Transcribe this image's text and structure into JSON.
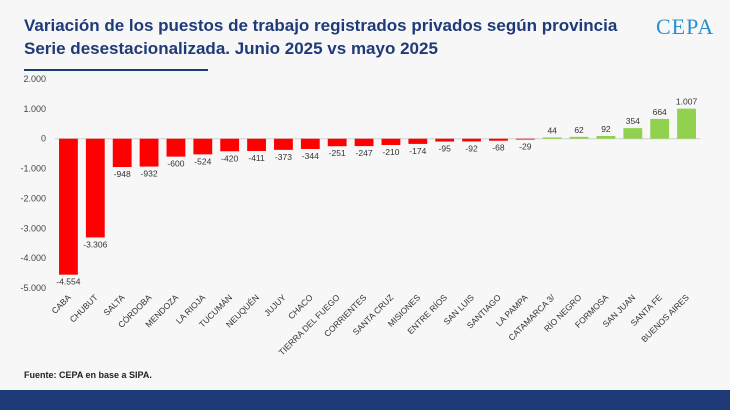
{
  "header": {
    "title_line1": "Variación de los puestos de trabajo registrados privados según provincia",
    "title_line2": "Serie desestacionalizada. Junio 2025 vs mayo 2025",
    "logo_text": "CEPA"
  },
  "footer": {
    "source": "Fuente: CEPA en base a SIPA."
  },
  "colors": {
    "negative": "#ff0000",
    "positive": "#92d050",
    "title": "#1f3a78",
    "footer_bar": "#1f3a78",
    "logo": "#2a8fd0"
  },
  "chart_data": {
    "type": "bar",
    "categories": [
      "CABA",
      "CHUBUT",
      "SALTA",
      "CÓRDOBA",
      "MENDOZA",
      "LA RIOJA",
      "TUCUMÁN",
      "NEUQUÉN",
      "JUJUY",
      "CHACO",
      "TIERRA DEL FUEGO",
      "CORRIENTES",
      "SANTA CRUZ",
      "MISIONES",
      "ENTRE RÍOS",
      "SAN LUIS",
      "SANTIAGO",
      "LA PAMPA",
      "CATAMARCA 3/",
      "RÍO NEGRO",
      "FORMOSA",
      "SAN JUAN",
      "SANTA FE",
      "BUENOS AIRES"
    ],
    "values": [
      -4554,
      -3306,
      -948,
      -932,
      -600,
      -524,
      -420,
      -411,
      -373,
      -344,
      -251,
      -247,
      -210,
      -174,
      -95,
      -92,
      -68,
      -29,
      44,
      62,
      92,
      354,
      664,
      1007
    ],
    "value_labels": [
      "-4.554",
      "-3.306",
      "-948",
      "-932",
      "-600",
      "-524",
      "-420",
      "-411",
      "-373",
      "-344",
      "-251",
      "-247",
      "-210",
      "-174",
      "-95",
      "-92",
      "-68",
      "-29",
      "44",
      "62",
      "92",
      "354",
      "664",
      "1.007"
    ],
    "y_ticks": [
      2000,
      1000,
      0,
      -1000,
      -2000,
      -3000,
      -4000,
      -5000
    ],
    "y_tick_labels": [
      "2.000",
      "1.000",
      "0",
      "-1.000",
      "-2.000",
      "-3.000",
      "-4.000",
      "-5.000"
    ],
    "ylim": [
      -5000,
      2000
    ],
    "grid": false,
    "legend": "none"
  }
}
